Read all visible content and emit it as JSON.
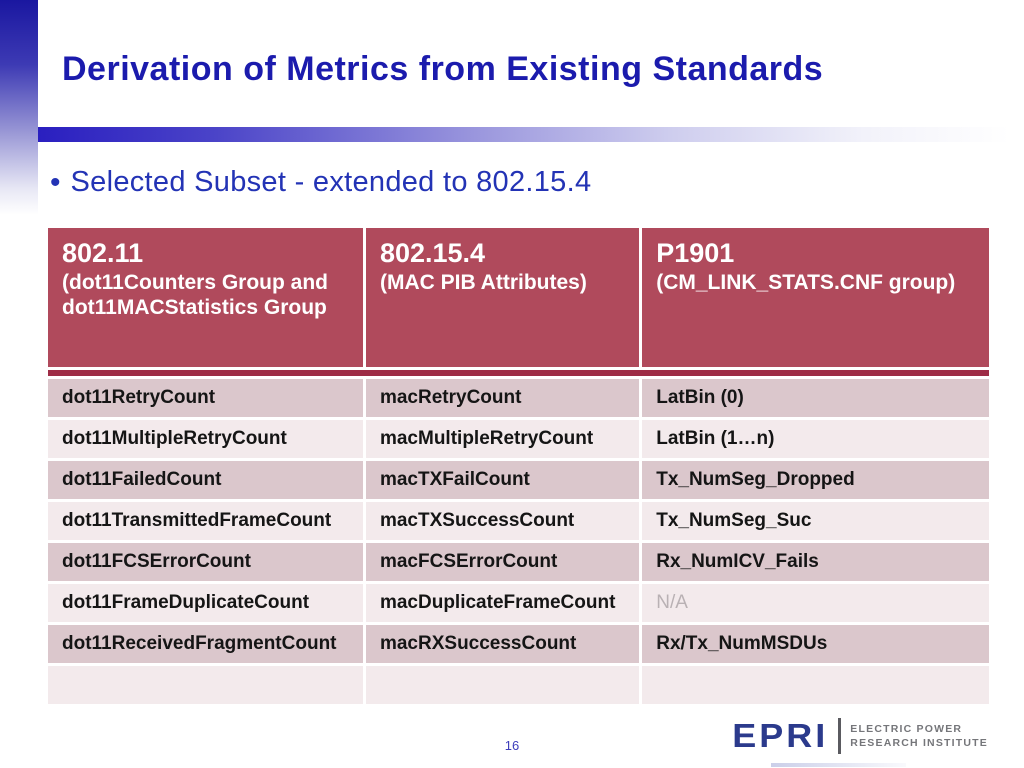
{
  "slide": {
    "title": "Derivation of Metrics from Existing Standards",
    "bullet": "Selected Subset - extended to 802.15.4",
    "page_number": "16"
  },
  "table": {
    "headers": [
      {
        "primary": "802.11",
        "secondary": "(dot11Counters Group and dot11MACStatistics Group"
      },
      {
        "primary": "802.15.4",
        "secondary": "(MAC PIB Attributes)"
      },
      {
        "primary": "P1901",
        "secondary": "(CM_LINK_STATS.CNF group)"
      }
    ],
    "rows": [
      [
        "dot11RetryCount",
        "macRetryCount",
        "LatBin (0)"
      ],
      [
        "dot11MultipleRetryCount",
        "macMultipleRetryCount",
        "LatBin (1…n)"
      ],
      [
        "dot11FailedCount",
        "macTXFailCount",
        "Tx_NumSeg_Dropped"
      ],
      [
        "dot11TransmittedFrameCount",
        "macTXSuccessCount",
        "Tx_NumSeg_Suc"
      ],
      [
        "dot11FCSErrorCount",
        "macFCSErrorCount",
        "Rx_NumICV_Fails"
      ],
      [
        "dot11FrameDuplicateCount",
        "macDuplicateFrameCount",
        "N/A"
      ],
      [
        "dot11ReceivedFragmentCount",
        "macRXSuccessCount",
        "Rx/Tx_NumMSDUs"
      ],
      [
        "",
        "",
        ""
      ]
    ],
    "na_value": "N/A"
  },
  "logo": {
    "brand": "EPRI",
    "tagline_line1": "ELECTRIC POWER",
    "tagline_line2": "RESEARCH INSTITUTE"
  },
  "colors": {
    "title_blue": "#1b1bad",
    "bullet_blue": "#2333b5",
    "header_bg": "#b04a5c",
    "header_divider": "#9e2c46",
    "row_dark": "#dbc7cc",
    "row_light": "#f3eaec",
    "na_gray": "#b9b1b4",
    "logo_navy": "#2b3a8c",
    "logo_gray": "#75767a"
  }
}
